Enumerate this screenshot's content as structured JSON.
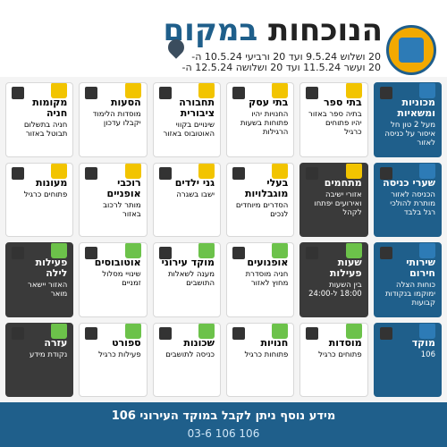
{
  "header": {
    "title_main": "הנוכחות",
    "title_sub": "במקום",
    "dates": [
      "20 ושלוש 9.5.24 ועד 20 ורביעי 10.5.24 ה-",
      "20 ועשר 11.5.24 ועד 20 ושלושה 12.5.24 ה-"
    ]
  },
  "cards": [
    {
      "title": "מכוניות ומשאיות",
      "text": "מעל 2 טון חל איסור על כניסה לאזור",
      "style": "blue",
      "badge": "blue"
    },
    {
      "title": "בתי ספר",
      "text": "בתיה ספר באזור יהיו פתוחים כרגיל",
      "style": "white",
      "badge": "yellow"
    },
    {
      "title": "בתי עסק",
      "text": "החנויות יהיו פתוחות בשעות הרגילות",
      "style": "white",
      "badge": "yellow"
    },
    {
      "title": "תחבורה ציבורית",
      "text": "שינויים בקווי האוטובוס באזור",
      "style": "white",
      "badge": "yellow"
    },
    {
      "title": "הסעות",
      "text": "מוסדות הלימוד יקבלו עדכון",
      "style": "white",
      "badge": "yellow"
    },
    {
      "title": "מקומות חניה",
      "text": "חניה בתשלום תבוטל באזור",
      "style": "white",
      "badge": "yellow"
    },
    {
      "title": "שערי כניסה",
      "text": "הכניסה לאזור מותרת להולכי רגל בלבד",
      "style": "blue",
      "badge": "blue"
    },
    {
      "title": "מתחמים",
      "text": "אזורי ישיבה ואירועים יפתחו לקהל",
      "style": "dark",
      "badge": "yellow"
    },
    {
      "title": "בעלי מוגבלויות",
      "text": "הסדרים מיוחדים לנכים",
      "style": "white",
      "badge": "yellow"
    },
    {
      "title": "גני ילדים",
      "text": "ישבו בשגרה",
      "style": "white",
      "badge": "yellow"
    },
    {
      "title": "רוכבי אופניים",
      "text": "מותר לרכוב באזור",
      "style": "white",
      "badge": "yellow"
    },
    {
      "title": "מעונות",
      "text": "פתוחים כרגיל",
      "style": "white",
      "badge": "yellow"
    },
    {
      "title": "שירותי חירום",
      "text": "כוחות הצלה ימוקמו בנקודות קבועות",
      "style": "blue",
      "badge": "blue"
    },
    {
      "title": "שעות פעילות",
      "text": "בין השעות 18:00 ל-24:00",
      "style": "dark",
      "badge": "green"
    },
    {
      "title": "אופנועים",
      "text": "חניה מוסדרת מחוץ לאזור",
      "style": "white",
      "badge": "green"
    },
    {
      "title": "מוקד עירוני",
      "text": "מענה לשאלות התושבים",
      "style": "white",
      "badge": "green"
    },
    {
      "title": "אוטובוסים",
      "text": "שינויי מסלול זמניים",
      "style": "white",
      "badge": "green"
    },
    {
      "title": "פעילות לילה",
      "text": "האזור יישאר מואר",
      "style": "dark",
      "badge": "green"
    },
    {
      "title": "מוקד",
      "text": "106",
      "style": "blue",
      "badge": "blue"
    },
    {
      "title": "מוסדות",
      "text": "פתוחים כרגיל",
      "style": "white",
      "badge": "green"
    },
    {
      "title": "חנויות",
      "text": "פתוחות כרגיל",
      "style": "white",
      "badge": "green"
    },
    {
      "title": "שכונות",
      "text": "כניסה לתושבים",
      "style": "white",
      "badge": "green"
    },
    {
      "title": "ספורט",
      "text": "פעילות כרגיל",
      "style": "white",
      "badge": "green"
    },
    {
      "title": "עזרה",
      "text": "נקודת מידע",
      "style": "dark",
      "badge": "green"
    }
  ],
  "footer": {
    "text": "מידע נוסף ניתן לקבל במוקד העירוני 106",
    "number": "03-6 106 106"
  },
  "colors": {
    "brand": "#1f5f8b",
    "accent": "#f2c400",
    "green": "#6cc24a",
    "dark": "#3a3a3a"
  }
}
